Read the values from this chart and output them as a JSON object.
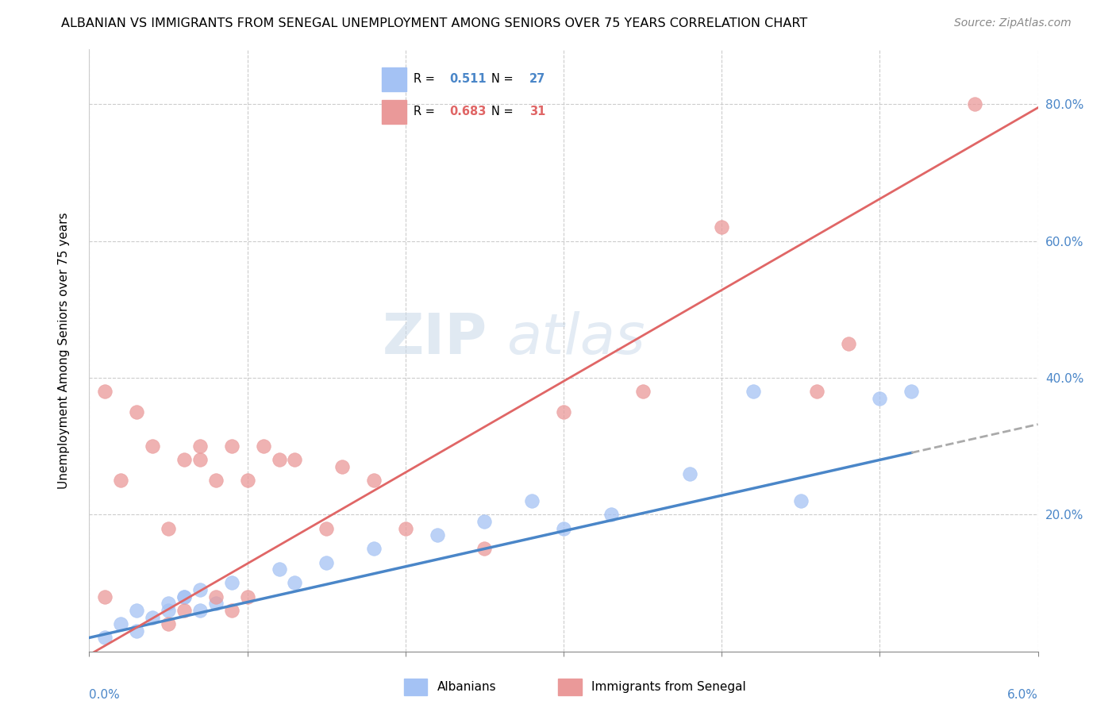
{
  "title": "ALBANIAN VS IMMIGRANTS FROM SENEGAL UNEMPLOYMENT AMONG SENIORS OVER 75 YEARS CORRELATION CHART",
  "source": "Source: ZipAtlas.com",
  "ylabel": "Unemployment Among Seniors over 75 years",
  "R_blue": 0.511,
  "N_blue": 27,
  "R_pink": 0.683,
  "N_pink": 31,
  "blue_color": "#a4c2f4",
  "pink_color": "#ea9999",
  "blue_line_color": "#4a86c8",
  "pink_line_color": "#e06666",
  "legend_label_blue": "Albanians",
  "legend_label_pink": "Immigrants from Senegal",
  "watermark_zip": "ZIP",
  "watermark_atlas": "atlas",
  "blue_scatter_x": [
    0.001,
    0.002,
    0.003,
    0.004,
    0.005,
    0.006,
    0.007,
    0.008,
    0.003,
    0.005,
    0.006,
    0.007,
    0.009,
    0.012,
    0.013,
    0.015,
    0.018,
    0.022,
    0.025,
    0.028,
    0.03,
    0.033,
    0.038,
    0.042,
    0.045,
    0.05,
    0.052
  ],
  "blue_scatter_y": [
    0.02,
    0.04,
    0.03,
    0.05,
    0.06,
    0.08,
    0.06,
    0.07,
    0.06,
    0.07,
    0.08,
    0.09,
    0.1,
    0.12,
    0.1,
    0.13,
    0.15,
    0.17,
    0.19,
    0.22,
    0.18,
    0.2,
    0.26,
    0.38,
    0.22,
    0.37,
    0.38
  ],
  "pink_scatter_x": [
    0.001,
    0.001,
    0.002,
    0.003,
    0.004,
    0.005,
    0.005,
    0.006,
    0.006,
    0.007,
    0.007,
    0.008,
    0.008,
    0.009,
    0.009,
    0.01,
    0.01,
    0.011,
    0.012,
    0.013,
    0.015,
    0.016,
    0.018,
    0.02,
    0.025,
    0.03,
    0.035,
    0.04,
    0.046,
    0.048,
    0.056
  ],
  "pink_scatter_y": [
    0.08,
    0.38,
    0.25,
    0.35,
    0.3,
    0.18,
    0.04,
    0.28,
    0.06,
    0.3,
    0.28,
    0.25,
    0.08,
    0.3,
    0.06,
    0.08,
    0.25,
    0.3,
    0.28,
    0.28,
    0.18,
    0.27,
    0.25,
    0.18,
    0.15,
    0.35,
    0.38,
    0.62,
    0.38,
    0.45,
    0.8
  ],
  "xmin": 0.0,
  "xmax": 0.06,
  "ymin": 0.0,
  "ymax": 0.88,
  "ytick_vals": [
    0.0,
    0.2,
    0.4,
    0.6,
    0.8
  ],
  "ytick_labels": [
    "",
    "20.0%",
    "40.0%",
    "60.0%",
    "80.0%"
  ],
  "blue_line_x_end": 0.052,
  "title_fontsize": 11.5,
  "source_fontsize": 10
}
